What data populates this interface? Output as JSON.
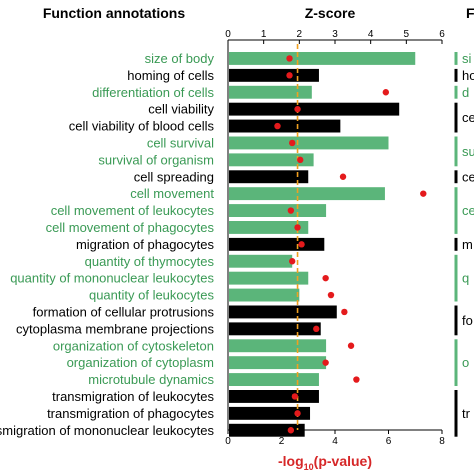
{
  "chart_data": {
    "type": "bar",
    "title": "Z-score",
    "row_header": "Function annotations",
    "side_header": "F",
    "xlabel_prefix": "-log",
    "xlabel_sub": "10",
    "xlabel_suffix": "(p-value)",
    "x_top_ticks": [
      "0",
      "1",
      "2",
      "3",
      "4",
      "5",
      "6"
    ],
    "x_bottom_ticks": [
      "0",
      "2",
      "4",
      "6",
      "8"
    ],
    "z_range": [
      0,
      6
    ],
    "p_range": [
      0,
      8
    ],
    "threshold": 1.3,
    "colors": {
      "green": "#5bb57a",
      "black": "#000000",
      "dot": "#e41a1c",
      "threshold": "#f0a020",
      "green_text": "#3a9a55"
    },
    "categories": [
      "size of body",
      "homing of cells",
      "differentiation of cells",
      "cell viability",
      "cell viability of blood cells",
      "cell survival",
      "survival of organism",
      "cell spreading",
      "cell movement",
      "cell movement of leukocytes",
      "cell movement of phagocytes",
      "migration of phagocytes",
      "quantity of thymocytes",
      "quantity of mononuclear leukocytes",
      "quantity of leukocytes",
      "formation of cellular protrusions",
      "cytoplasma membrane projections",
      "organization of cytoskeleton",
      "organization of cytoplasm",
      "microtubule dynamics",
      "transmigration of leukocytes",
      "transmigration of phagocytes",
      "transmigration of mononuclear leukocytes"
    ],
    "label_colors": [
      "green",
      "black",
      "green",
      "black",
      "black",
      "green",
      "green",
      "black",
      "green",
      "green",
      "green",
      "black",
      "green",
      "green",
      "green",
      "black",
      "black",
      "green",
      "green",
      "green",
      "black",
      "black",
      "black"
    ],
    "z_scores": [
      5.25,
      2.55,
      2.35,
      4.8,
      3.15,
      4.5,
      2.4,
      2.25,
      4.4,
      2.75,
      2.25,
      2.7,
      1.8,
      2.25,
      2.0,
      3.05,
      2.6,
      2.75,
      2.75,
      2.55,
      2.55,
      2.3,
      2.15
    ],
    "bar_colors": [
      "green",
      "black",
      "green",
      "black",
      "black",
      "green",
      "green",
      "black",
      "green",
      "green",
      "green",
      "black",
      "green",
      "green",
      "green",
      "black",
      "black",
      "green",
      "green",
      "green",
      "black",
      "black",
      "black"
    ],
    "neg_log_p": [
      2.3,
      2.3,
      5.9,
      2.6,
      1.85,
      2.4,
      2.7,
      4.3,
      7.3,
      2.35,
      2.6,
      2.75,
      2.4,
      3.65,
      3.85,
      4.35,
      3.3,
      4.6,
      3.65,
      4.8,
      2.5,
      2.6,
      2.35
    ],
    "right_panel_labels": [
      "si",
      "ho",
      "d",
      "ce",
      "su",
      "ce",
      "ce",
      "m",
      "q",
      "fo",
      "o",
      "tr"
    ]
  }
}
